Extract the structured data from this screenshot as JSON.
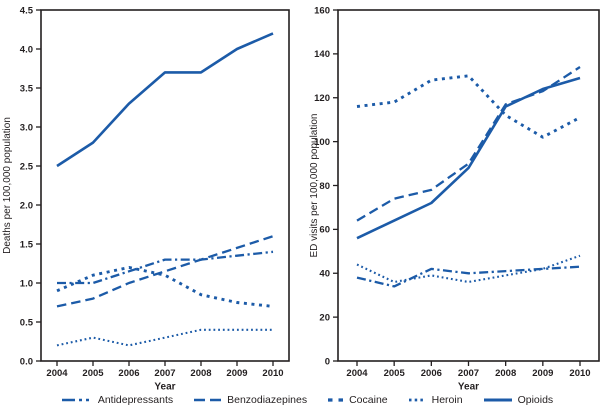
{
  "figure": {
    "line_color": "#1c5ba8",
    "axis_color": "#231f20",
    "background": "#ffffff"
  },
  "legend": [
    {
      "label": "Antidepressants",
      "style": "dash-dot"
    },
    {
      "label": "Benzodiazepines",
      "style": "dashed"
    },
    {
      "label": "Cocaine",
      "style": "square-dots"
    },
    {
      "label": "Heroin",
      "style": "fine-dots"
    },
    {
      "label": "Opioids",
      "style": "solid"
    }
  ],
  "chart_data": [
    {
      "type": "line",
      "panel": "deaths",
      "xlabel": "Year",
      "ylabel": "Deaths per 100,000 population",
      "x": [
        2004,
        2005,
        2006,
        2007,
        2008,
        2009,
        2010
      ],
      "x_labels": [
        "2004",
        "2005",
        "2006",
        "2007",
        "2008",
        "2009",
        "2010"
      ],
      "ylim": [
        0,
        4.5
      ],
      "yticks": [
        0,
        0.5,
        1.0,
        1.5,
        2.0,
        2.5,
        3.0,
        3.5,
        4.0,
        4.5
      ],
      "ytick_labels": [
        "0.0",
        "0.5",
        "1.0",
        "1.5",
        "2.0",
        "2.5",
        "3.0",
        "3.5",
        "4.0",
        "4.5"
      ],
      "grid": false,
      "legend_position": "shared-bottom",
      "series": [
        {
          "name": "Antidepressants",
          "style": "dash-dot",
          "values": [
            1.0,
            1.0,
            1.15,
            1.3,
            1.3,
            1.35,
            1.4
          ]
        },
        {
          "name": "Benzodiazepines",
          "style": "dashed",
          "values": [
            0.7,
            0.8,
            1.0,
            1.15,
            1.3,
            1.45,
            1.6
          ]
        },
        {
          "name": "Cocaine",
          "style": "square-dots",
          "values": [
            0.9,
            1.1,
            1.2,
            1.1,
            0.85,
            0.75,
            0.7
          ]
        },
        {
          "name": "Heroin",
          "style": "fine-dots",
          "values": [
            0.2,
            0.3,
            0.2,
            0.3,
            0.4,
            0.4,
            0.4
          ]
        },
        {
          "name": "Opioids",
          "style": "solid",
          "values": [
            2.5,
            2.8,
            3.3,
            3.7,
            3.7,
            4.0,
            4.2
          ]
        }
      ]
    },
    {
      "type": "line",
      "panel": "ed-visits",
      "xlabel": "Year",
      "ylabel": "ED visits per 100,000 population",
      "x": [
        2004,
        2005,
        2006,
        2007,
        2008,
        2009,
        2010
      ],
      "x_labels": [
        "2004",
        "2005",
        "2006",
        "2007",
        "2008",
        "2009",
        "2010"
      ],
      "ylim": [
        0,
        160
      ],
      "yticks": [
        0,
        20,
        40,
        60,
        80,
        100,
        120,
        140,
        160
      ],
      "ytick_labels": [
        "0",
        "20",
        "40",
        "60",
        "80",
        "100",
        "120",
        "140",
        "160"
      ],
      "grid": false,
      "legend_position": "shared-bottom",
      "series": [
        {
          "name": "Antidepressants",
          "style": "dash-dot",
          "values": [
            38,
            34,
            42,
            40,
            41,
            42,
            43
          ]
        },
        {
          "name": "Benzodiazepines",
          "style": "dashed",
          "values": [
            64,
            74,
            78,
            90,
            117,
            123,
            134
          ]
        },
        {
          "name": "Cocaine",
          "style": "square-dots",
          "values": [
            116,
            118,
            128,
            130,
            112,
            102,
            111
          ]
        },
        {
          "name": "Heroin",
          "style": "fine-dots",
          "values": [
            44,
            36,
            39,
            36,
            39,
            42,
            48
          ]
        },
        {
          "name": "Opioids",
          "style": "solid",
          "values": [
            56,
            64,
            72,
            88,
            116,
            124,
            129
          ]
        }
      ]
    }
  ]
}
